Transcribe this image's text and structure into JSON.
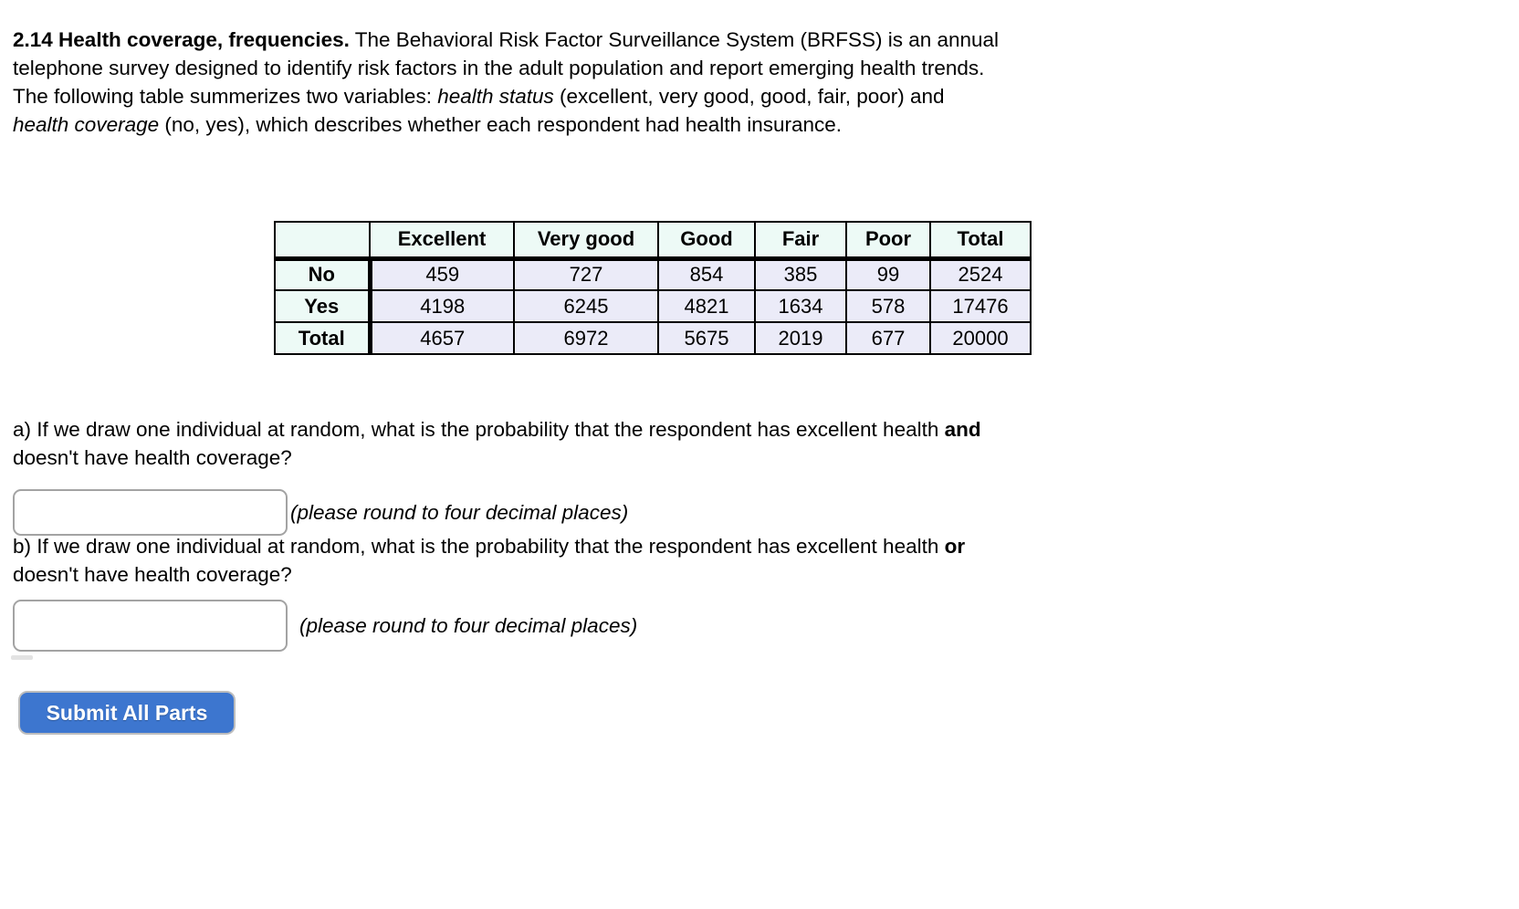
{
  "page": {
    "bg": "#ffffff",
    "text_color": "#000000"
  },
  "intro": {
    "segments": [
      {
        "text": "2.14 Health coverage, frequencies.",
        "bold": true
      },
      {
        "text": " The Behavioral Risk Factor Surveillance System (BRFSS) is an annual"
      },
      {
        "br": true
      },
      {
        "text": "telephone survey designed to identify risk factors in the adult population and report emerging health trends."
      },
      {
        "br": true
      },
      {
        "text": "The following table summerizes two variables: "
      },
      {
        "text": "health status",
        "italic": true
      },
      {
        "text": " (excellent, very good, good, fair, poor) and"
      },
      {
        "br": true
      },
      {
        "text": "health coverage",
        "italic": true
      },
      {
        "text": " (no, yes), which describes whether each respondent had health insurance."
      }
    ]
  },
  "table": {
    "columns": [
      "",
      "Excellent",
      "Very good",
      "Good",
      "Fair",
      "Poor",
      "Total"
    ],
    "rows": [
      {
        "label": "No",
        "values": [
          "459",
          "727",
          "854",
          "385",
          "99",
          "2524"
        ]
      },
      {
        "label": "Yes",
        "values": [
          "4198",
          "6245",
          "4821",
          "1634",
          "578",
          "17476"
        ]
      },
      {
        "label": "Total",
        "values": [
          "4657",
          "6972",
          "5675",
          "2019",
          "677",
          "20000"
        ]
      }
    ],
    "colors": {
      "header_bg": "#edfaf6",
      "cell_bg": "#ebebf8",
      "border": "#000000"
    }
  },
  "question_a": {
    "segments": [
      {
        "text": "a) If we draw one individual at random, what is the probability that the respondent has excellent health "
      },
      {
        "text": "and",
        "bold": true
      },
      {
        "br": true
      },
      {
        "text": "doesn't have health coverage?"
      }
    ],
    "input_value": "",
    "hint": "(please round to four decimal places)"
  },
  "question_b": {
    "segments": [
      {
        "text": "b) If we draw one individual at random, what is the probability that the respondent has excellent health "
      },
      {
        "text": "or",
        "bold": true
      },
      {
        "br": true
      },
      {
        "text": "doesn't have health coverage?"
      }
    ],
    "input_value": "",
    "hint": "(please round to four decimal places)"
  },
  "submit": {
    "label": "Submit All Parts",
    "bg": "#3d76cf",
    "text_color": "#ffffff"
  }
}
